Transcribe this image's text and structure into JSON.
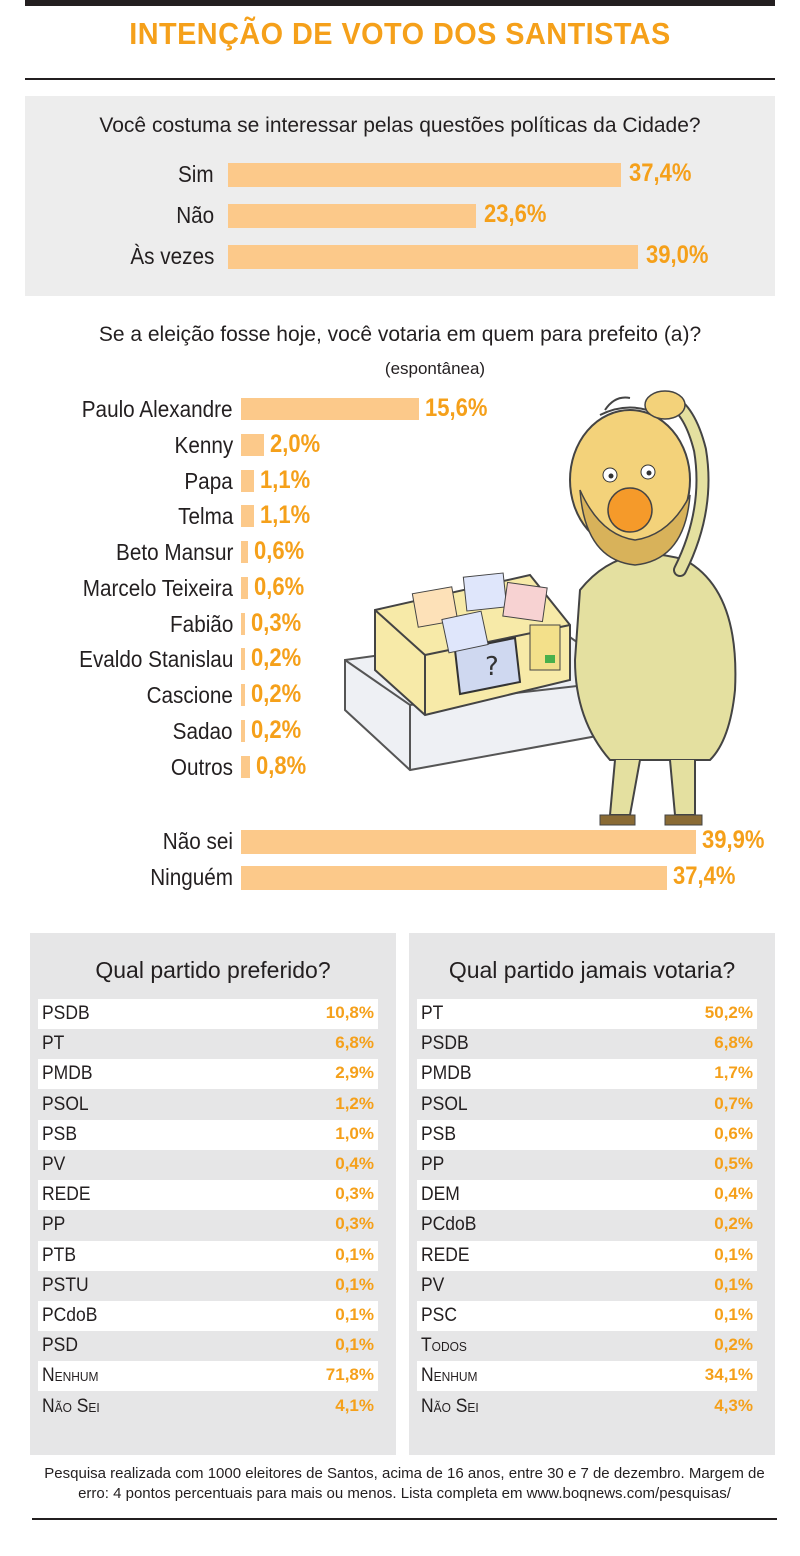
{
  "title": "INTENÇÃO DE VOTO DOS SANTISTAS",
  "colors": {
    "accent": "#f5a01a",
    "bar": "#fcc98a",
    "panel": "#ededed",
    "text": "#231f20"
  },
  "chart_data": [
    {
      "type": "bar",
      "orientation": "horizontal",
      "title": "Você costuma se interessar pelas questões políticas da Cidade?",
      "categories": [
        "Sim",
        "Não",
        "Às vezes"
      ],
      "values": [
        37.4,
        23.6,
        39.0
      ],
      "labels": [
        "37,4%",
        "23,6%",
        "39,0%"
      ]
    },
    {
      "type": "bar",
      "orientation": "horizontal",
      "title": "Se a eleição fosse hoje, você votaria em quem para prefeito (a)?",
      "subtitle": "(espontânea)",
      "categories": [
        "Paulo Alexandre",
        "Kenny",
        "Papa",
        "Telma",
        "Beto Mansur",
        "Marcelo Teixeira",
        "Fabião",
        "Evaldo Stanislau",
        "Cascione",
        "Sadao",
        "Outros",
        "Não sei",
        "Ninguém"
      ],
      "values": [
        15.6,
        2.0,
        1.1,
        1.1,
        0.6,
        0.6,
        0.3,
        0.2,
        0.2,
        0.2,
        0.8,
        39.9,
        37.4
      ],
      "labels": [
        "15,6%",
        "2,0%",
        "1,1%",
        "1,1%",
        "0,6%",
        "0,6%",
        "0,3%",
        "0,2%",
        "0,2%",
        "0,2%",
        "0,8%",
        "39,9%",
        "37,4%"
      ]
    },
    {
      "type": "table",
      "title": "Qual partido preferido?",
      "rows": [
        [
          "PSDB",
          "10,8%"
        ],
        [
          "PT",
          "6,8%"
        ],
        [
          "PMDB",
          "2,9%"
        ],
        [
          "PSOL",
          "1,2%"
        ],
        [
          "PSB",
          "1,0%"
        ],
        [
          "PV",
          "0,4%"
        ],
        [
          "REDE",
          "0,3%"
        ],
        [
          "PP",
          "0,3%"
        ],
        [
          "PTB",
          "0,1%"
        ],
        [
          "PSTU",
          "0,1%"
        ],
        [
          "PCdoB",
          "0,1%"
        ],
        [
          "PSD",
          "0,1%"
        ],
        [
          "Nenhum",
          "71,8%"
        ],
        [
          "Não Sei",
          "4,1%"
        ]
      ]
    },
    {
      "type": "table",
      "title": "Qual partido jamais votaria?",
      "rows": [
        [
          "PT",
          "50,2%"
        ],
        [
          "PSDB",
          "6,8%"
        ],
        [
          "PMDB",
          "1,7%"
        ],
        [
          "PSOL",
          "0,7%"
        ],
        [
          "PSB",
          "0,6%"
        ],
        [
          "PP",
          "0,5%"
        ],
        [
          "DEM",
          "0,4%"
        ],
        [
          "PCdoB",
          "0,2%"
        ],
        [
          "REDE",
          "0,1%"
        ],
        [
          "PV",
          "0,1%"
        ],
        [
          "PSC",
          "0,1%"
        ],
        [
          "Todos",
          "0,2%"
        ],
        [
          "Nenhum",
          "34,1%"
        ],
        [
          "Não Sei",
          "4,3%"
        ]
      ]
    }
  ],
  "footer": "Pesquisa realizada com 1000 eleitores de Santos, acima de 16 anos, entre 30 e 7 de dezembro.  Margem de erro: 4 pontos percentuais para mais ou menos. Lista completa em www.boqnews.com/pesquisas/"
}
